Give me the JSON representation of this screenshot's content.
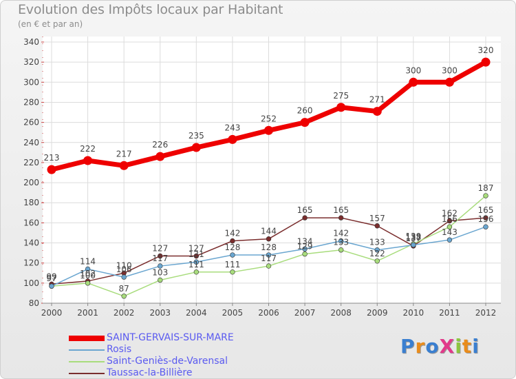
{
  "title": "Evolution des Impôts locaux par Habitant",
  "subtitle": "(en € et par an)",
  "logo": "ProXiti",
  "chart_data": {
    "type": "line",
    "title": "Evolution des Impôts locaux par Habitant",
    "subtitle": "(en € et par an)",
    "xlabel": "",
    "ylabel": "",
    "ylim": [
      80,
      340
    ],
    "yticks": [
      80,
      100,
      120,
      140,
      160,
      180,
      200,
      220,
      240,
      260,
      280,
      300,
      320,
      340
    ],
    "grid": true,
    "categories": [
      "2000",
      "2001",
      "2002",
      "2003",
      "2004",
      "2005",
      "2006",
      "2007",
      "2008",
      "2009",
      "2010",
      "2011",
      "2012"
    ],
    "series": [
      {
        "name": "SAINT-GERVAIS-SUR-MARE",
        "color": "#ee0000",
        "values": [
          213,
          222,
          217,
          226,
          235,
          243,
          252,
          260,
          275,
          271,
          300,
          300,
          320
        ],
        "labels": [
          "213",
          "222",
          "217",
          "226",
          "235",
          "243",
          "252",
          "260",
          "275",
          "271",
          "300",
          "300",
          "320"
        ]
      },
      {
        "name": "Rosis",
        "color": "#6aa6d0",
        "values": [
          97,
          114,
          106,
          117,
          121,
          128,
          128,
          134,
          142,
          133,
          138,
          143,
          156
        ],
        "labels": [
          "97",
          "114",
          "106",
          "117",
          "121",
          "128",
          "128",
          "134",
          "142",
          "133",
          "138",
          "143",
          "156"
        ]
      },
      {
        "name": "Saint-Geniès-de-Varensal",
        "color": "#a8dc7c",
        "values": [
          97,
          100,
          87,
          103,
          111,
          111,
          117,
          129,
          133,
          122,
          139,
          156,
          187
        ],
        "labels": [
          "97",
          "100",
          "87",
          "103",
          "111",
          "111",
          "117",
          "129",
          "133",
          "122",
          "139",
          "156",
          "187"
        ]
      },
      {
        "name": "Taussac-la-Billière",
        "color": "#7a2d2d",
        "values": [
          99,
          102,
          110,
          127,
          127,
          142,
          144,
          165,
          165,
          157,
          137,
          162,
          165
        ],
        "labels": [
          "99",
          "102",
          "110",
          "127",
          "127",
          "142",
          "144",
          "165",
          "165",
          "157",
          "137",
          "162",
          "165"
        ]
      }
    ]
  }
}
